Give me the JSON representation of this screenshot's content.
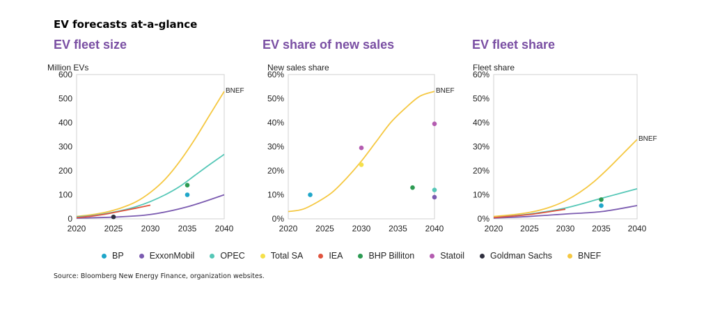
{
  "page_title": "EV forecasts at-a-glance",
  "source": "Source: Bloomberg New Energy Finance, organization websites.",
  "colors": {
    "BP": "#1fa6c9",
    "ExxonMobil": "#7b5bb0",
    "OPEC": "#55c7b7",
    "Total SA": "#f5e04a",
    "IEA": "#e0533d",
    "BHP Billiton": "#2c9a52",
    "Statoil": "#b45cb0",
    "Goldman Sachs": "#2f2f3f",
    "BNEF": "#f5c842"
  },
  "legend": [
    "BP",
    "ExxonMobil",
    "OPEC",
    "Total SA",
    "IEA",
    "BHP Billiton",
    "Statoil",
    "Goldman Sachs",
    "BNEF"
  ],
  "chart_data": [
    {
      "type": "line",
      "title": "EV fleet size",
      "ylabel": "Million EVs",
      "xlim": [
        2020,
        2040
      ],
      "ylim": [
        0,
        600
      ],
      "xticks": [
        2020,
        2025,
        2030,
        2035,
        2040
      ],
      "xtick_labels": [
        "2020",
        "2025",
        "2030",
        "2035",
        "2040"
      ],
      "yticks": [
        0,
        100,
        200,
        300,
        400,
        500,
        600
      ],
      "ytick_labels": [
        "0",
        "100",
        "200",
        "300",
        "400",
        "500",
        "600"
      ],
      "series": [
        {
          "name": "BNEF",
          "x": [
            2020,
            2022,
            2024,
            2026,
            2028,
            2030,
            2032,
            2034,
            2036,
            2038,
            2040
          ],
          "y": [
            10,
            17,
            28,
            45,
            70,
            110,
            165,
            240,
            330,
            430,
            530
          ]
        },
        {
          "name": "OPEC",
          "x": [
            2020,
            2022,
            2024,
            2026,
            2028,
            2030,
            2032,
            2034,
            2036,
            2038,
            2040
          ],
          "y": [
            8,
            13,
            22,
            34,
            50,
            72,
            100,
            135,
            180,
            225,
            268
          ]
        },
        {
          "name": "ExxonMobil",
          "x": [
            2020,
            2025,
            2030,
            2035,
            2040
          ],
          "y": [
            3,
            7,
            18,
            50,
            100
          ]
        },
        {
          "name": "IEA",
          "x": [
            2020,
            2022,
            2024,
            2026,
            2028,
            2030
          ],
          "y": [
            5,
            11,
            20,
            32,
            44,
            57
          ]
        }
      ],
      "points": [
        {
          "name": "BP",
          "x": 2035,
          "y": 100
        },
        {
          "name": "BHP Billiton",
          "x": 2035,
          "y": 140
        },
        {
          "name": "Goldman Sachs",
          "x": 2025,
          "y": 8
        }
      ],
      "annotations": [
        {
          "text": "BNEF",
          "x": 2040,
          "y": 530
        }
      ]
    },
    {
      "type": "line",
      "title": "EV share of new sales",
      "ylabel": "New sales share",
      "xlim": [
        2020,
        2040
      ],
      "ylim": [
        0,
        60
      ],
      "xticks": [
        2020,
        2025,
        2030,
        2035,
        2040
      ],
      "xtick_labels": [
        "2020",
        "2025",
        "2030",
        "2035",
        "2040"
      ],
      "yticks": [
        0,
        10,
        20,
        30,
        40,
        50,
        60
      ],
      "ytick_labels": [
        "0%",
        "10%",
        "20%",
        "30%",
        "40%",
        "50%",
        "60%"
      ],
      "series": [
        {
          "name": "BNEF",
          "x": [
            2020,
            2022,
            2024,
            2026,
            2028,
            2030,
            2032,
            2034,
            2036,
            2038,
            2040
          ],
          "y": [
            3,
            4,
            7,
            11,
            17,
            24,
            32,
            40,
            46,
            51,
            53
          ]
        }
      ],
      "points": [
        {
          "name": "BP",
          "x": 2023,
          "y": 10
        },
        {
          "name": "Total SA",
          "x": 2030,
          "y": 22.5
        },
        {
          "name": "Statoil",
          "x": 2030,
          "y": 29.5
        },
        {
          "name": "BHP Billiton",
          "x": 2037,
          "y": 13
        },
        {
          "name": "OPEC",
          "x": 2040,
          "y": 12
        },
        {
          "name": "ExxonMobil",
          "x": 2040,
          "y": 9
        },
        {
          "name": "Statoil",
          "x": 2040,
          "y": 39.5
        }
      ],
      "annotations": [
        {
          "text": "BNEF",
          "x": 2040,
          "y": 53
        }
      ]
    },
    {
      "type": "line",
      "title": "EV fleet share",
      "ylabel": "Fleet share",
      "xlim": [
        2020,
        2040
      ],
      "ylim": [
        0,
        60
      ],
      "xticks": [
        2020,
        2025,
        2030,
        2035,
        2040
      ],
      "xtick_labels": [
        "2020",
        "2025",
        "2030",
        "2035",
        "2040"
      ],
      "yticks": [
        0,
        10,
        20,
        30,
        40,
        50,
        60
      ],
      "ytick_labels": [
        "0%",
        "10%",
        "20%",
        "30%",
        "40%",
        "50%",
        "60%"
      ],
      "series": [
        {
          "name": "BNEF",
          "x": [
            2020,
            2022,
            2024,
            2026,
            2028,
            2030,
            2032,
            2034,
            2036,
            2038,
            2040
          ],
          "y": [
            1,
            1.5,
            2.2,
            3.3,
            5,
            7.5,
            11,
            15.5,
            21,
            27,
            33
          ]
        },
        {
          "name": "OPEC",
          "x": [
            2020,
            2025,
            2030,
            2035,
            2040
          ],
          "y": [
            0.5,
            2,
            4.5,
            8.5,
            12.5
          ]
        },
        {
          "name": "ExxonMobil",
          "x": [
            2020,
            2025,
            2030,
            2035,
            2040
          ],
          "y": [
            0.3,
            1,
            2,
            3,
            5.5
          ]
        },
        {
          "name": "IEA",
          "x": [
            2020,
            2025,
            2030
          ],
          "y": [
            0.5,
            1.8,
            4
          ]
        }
      ],
      "points": [
        {
          "name": "BP",
          "x": 2035,
          "y": 5.5
        },
        {
          "name": "BHP Billiton",
          "x": 2035,
          "y": 8
        }
      ],
      "annotations": [
        {
          "text": "BNEF",
          "x": 2040,
          "y": 33
        }
      ]
    }
  ]
}
